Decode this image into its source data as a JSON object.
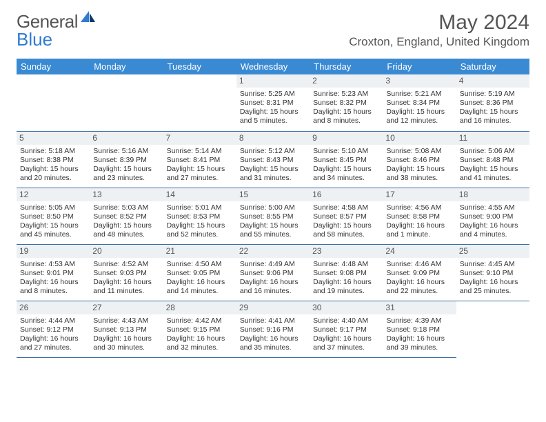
{
  "logo": {
    "part1": "General",
    "part2": "Blue"
  },
  "title": {
    "month": "May 2024",
    "location": "Croxton, England, United Kingdom"
  },
  "colors": {
    "header_bg": "#3a8ad3",
    "header_text": "#ffffff",
    "daynum_bg": "#eef1f4",
    "border": "#3a6fa0",
    "logo_gray": "#555555",
    "logo_blue": "#2f7bd1",
    "text": "#333333"
  },
  "weekdays": [
    "Sunday",
    "Monday",
    "Tuesday",
    "Wednesday",
    "Thursday",
    "Friday",
    "Saturday"
  ],
  "cells": {
    "d1": {
      "num": "1",
      "sr": "5:25 AM",
      "ss": "8:31 PM",
      "dl": "15 hours and 5 minutes."
    },
    "d2": {
      "num": "2",
      "sr": "5:23 AM",
      "ss": "8:32 PM",
      "dl": "15 hours and 8 minutes."
    },
    "d3": {
      "num": "3",
      "sr": "5:21 AM",
      "ss": "8:34 PM",
      "dl": "15 hours and 12 minutes."
    },
    "d4": {
      "num": "4",
      "sr": "5:19 AM",
      "ss": "8:36 PM",
      "dl": "15 hours and 16 minutes."
    },
    "d5": {
      "num": "5",
      "sr": "5:18 AM",
      "ss": "8:38 PM",
      "dl": "15 hours and 20 minutes."
    },
    "d6": {
      "num": "6",
      "sr": "5:16 AM",
      "ss": "8:39 PM",
      "dl": "15 hours and 23 minutes."
    },
    "d7": {
      "num": "7",
      "sr": "5:14 AM",
      "ss": "8:41 PM",
      "dl": "15 hours and 27 minutes."
    },
    "d8": {
      "num": "8",
      "sr": "5:12 AM",
      "ss": "8:43 PM",
      "dl": "15 hours and 31 minutes."
    },
    "d9": {
      "num": "9",
      "sr": "5:10 AM",
      "ss": "8:45 PM",
      "dl": "15 hours and 34 minutes."
    },
    "d10": {
      "num": "10",
      "sr": "5:08 AM",
      "ss": "8:46 PM",
      "dl": "15 hours and 38 minutes."
    },
    "d11": {
      "num": "11",
      "sr": "5:06 AM",
      "ss": "8:48 PM",
      "dl": "15 hours and 41 minutes."
    },
    "d12": {
      "num": "12",
      "sr": "5:05 AM",
      "ss": "8:50 PM",
      "dl": "15 hours and 45 minutes."
    },
    "d13": {
      "num": "13",
      "sr": "5:03 AM",
      "ss": "8:52 PM",
      "dl": "15 hours and 48 minutes."
    },
    "d14": {
      "num": "14",
      "sr": "5:01 AM",
      "ss": "8:53 PM",
      "dl": "15 hours and 52 minutes."
    },
    "d15": {
      "num": "15",
      "sr": "5:00 AM",
      "ss": "8:55 PM",
      "dl": "15 hours and 55 minutes."
    },
    "d16": {
      "num": "16",
      "sr": "4:58 AM",
      "ss": "8:57 PM",
      "dl": "15 hours and 58 minutes."
    },
    "d17": {
      "num": "17",
      "sr": "4:56 AM",
      "ss": "8:58 PM",
      "dl": "16 hours and 1 minute."
    },
    "d18": {
      "num": "18",
      "sr": "4:55 AM",
      "ss": "9:00 PM",
      "dl": "16 hours and 4 minutes."
    },
    "d19": {
      "num": "19",
      "sr": "4:53 AM",
      "ss": "9:01 PM",
      "dl": "16 hours and 8 minutes."
    },
    "d20": {
      "num": "20",
      "sr": "4:52 AM",
      "ss": "9:03 PM",
      "dl": "16 hours and 11 minutes."
    },
    "d21": {
      "num": "21",
      "sr": "4:50 AM",
      "ss": "9:05 PM",
      "dl": "16 hours and 14 minutes."
    },
    "d22": {
      "num": "22",
      "sr": "4:49 AM",
      "ss": "9:06 PM",
      "dl": "16 hours and 16 minutes."
    },
    "d23": {
      "num": "23",
      "sr": "4:48 AM",
      "ss": "9:08 PM",
      "dl": "16 hours and 19 minutes."
    },
    "d24": {
      "num": "24",
      "sr": "4:46 AM",
      "ss": "9:09 PM",
      "dl": "16 hours and 22 minutes."
    },
    "d25": {
      "num": "25",
      "sr": "4:45 AM",
      "ss": "9:10 PM",
      "dl": "16 hours and 25 minutes."
    },
    "d26": {
      "num": "26",
      "sr": "4:44 AM",
      "ss": "9:12 PM",
      "dl": "16 hours and 27 minutes."
    },
    "d27": {
      "num": "27",
      "sr": "4:43 AM",
      "ss": "9:13 PM",
      "dl": "16 hours and 30 minutes."
    },
    "d28": {
      "num": "28",
      "sr": "4:42 AM",
      "ss": "9:15 PM",
      "dl": "16 hours and 32 minutes."
    },
    "d29": {
      "num": "29",
      "sr": "4:41 AM",
      "ss": "9:16 PM",
      "dl": "16 hours and 35 minutes."
    },
    "d30": {
      "num": "30",
      "sr": "4:40 AM",
      "ss": "9:17 PM",
      "dl": "16 hours and 37 minutes."
    },
    "d31": {
      "num": "31",
      "sr": "4:39 AM",
      "ss": "9:18 PM",
      "dl": "16 hours and 39 minutes."
    }
  },
  "labels": {
    "sunrise": "Sunrise: ",
    "sunset": "Sunset: ",
    "daylight": "Daylight: "
  }
}
